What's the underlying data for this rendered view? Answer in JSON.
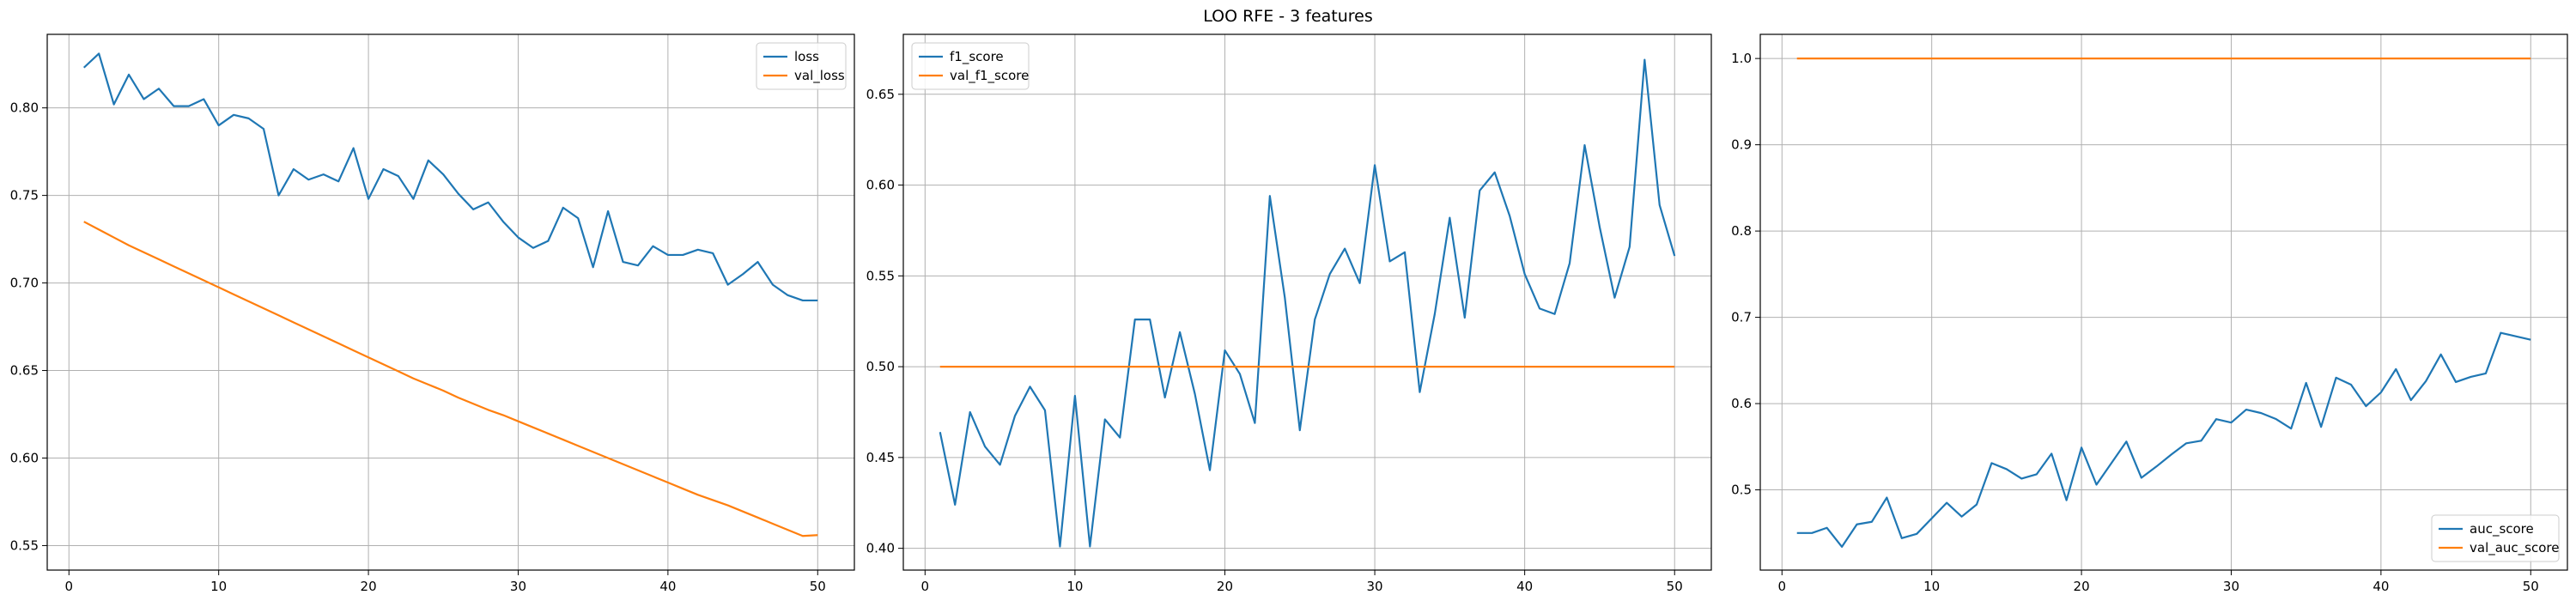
{
  "suptitle": "LOO RFE - 3 features",
  "colors": {
    "series1": "#1f77b4",
    "series2": "#ff7f0e",
    "grid": "#b0b0b0"
  },
  "chart_data": [
    {
      "type": "line",
      "title": "",
      "xlabel": "",
      "ylabel": "",
      "grid": true,
      "legend": "upper right",
      "xlim": [
        -1.45,
        52.45
      ],
      "ylim": [
        0.536,
        0.842
      ],
      "xticks": [
        0,
        10,
        20,
        30,
        40,
        50
      ],
      "yticks": [
        0.55,
        0.6,
        0.65,
        0.7,
        0.75,
        0.8
      ],
      "ytick_labels": [
        "0.55",
        "0.60",
        "0.65",
        "0.70",
        "0.75",
        "0.80"
      ],
      "x": [
        1,
        2,
        3,
        4,
        5,
        6,
        7,
        8,
        9,
        10,
        11,
        12,
        13,
        14,
        15,
        16,
        17,
        18,
        19,
        20,
        21,
        22,
        23,
        24,
        25,
        26,
        27,
        28,
        29,
        30,
        31,
        32,
        33,
        34,
        35,
        36,
        37,
        38,
        39,
        40,
        41,
        42,
        43,
        44,
        45,
        46,
        47,
        48,
        49,
        50
      ],
      "series": [
        {
          "name": "loss",
          "values": [
            0.823,
            0.831,
            0.802,
            0.819,
            0.805,
            0.811,
            0.801,
            0.801,
            0.805,
            0.79,
            0.796,
            0.794,
            0.788,
            0.75,
            0.765,
            0.759,
            0.762,
            0.758,
            0.777,
            0.748,
            0.765,
            0.761,
            0.748,
            0.77,
            0.762,
            0.751,
            0.742,
            0.746,
            0.735,
            0.726,
            0.72,
            0.724,
            0.743,
            0.737,
            0.709,
            0.741,
            0.712,
            0.71,
            0.721,
            0.716,
            0.716,
            0.719,
            0.717,
            0.699,
            0.705,
            0.712,
            0.699,
            0.693,
            0.69,
            0.69
          ]
        },
        {
          "name": "val_loss",
          "values": [
            0.735,
            0.7305,
            0.726,
            0.7215,
            0.7175,
            0.7135,
            0.7095,
            0.7055,
            0.7015,
            0.6975,
            0.6935,
            0.6895,
            0.6855,
            0.6815,
            0.6775,
            0.6735,
            0.6695,
            0.6655,
            0.6615,
            0.6575,
            0.6535,
            0.6495,
            0.6455,
            0.642,
            0.6385,
            0.6345,
            0.631,
            0.6275,
            0.6245,
            0.621,
            0.6175,
            0.614,
            0.6105,
            0.607,
            0.6035,
            0.6,
            0.5965,
            0.593,
            0.5895,
            0.586,
            0.5825,
            0.579,
            0.576,
            0.573,
            0.5695,
            0.566,
            0.5625,
            0.559,
            0.5555,
            0.556
          ]
        }
      ]
    },
    {
      "type": "line",
      "title": "",
      "xlabel": "",
      "ylabel": "",
      "grid": true,
      "legend": "upper left",
      "xlim": [
        -1.45,
        52.45
      ],
      "ylim": [
        0.388,
        0.683
      ],
      "xticks": [
        0,
        10,
        20,
        30,
        40,
        50
      ],
      "yticks": [
        0.4,
        0.45,
        0.5,
        0.55,
        0.6,
        0.65
      ],
      "ytick_labels": [
        "0.40",
        "0.45",
        "0.50",
        "0.55",
        "0.60",
        "0.65"
      ],
      "x": [
        1,
        2,
        3,
        4,
        5,
        6,
        7,
        8,
        9,
        10,
        11,
        12,
        13,
        14,
        15,
        16,
        17,
        18,
        19,
        20,
        21,
        22,
        23,
        24,
        25,
        26,
        27,
        28,
        29,
        30,
        31,
        32,
        33,
        34,
        35,
        36,
        37,
        38,
        39,
        40,
        41,
        42,
        43,
        44,
        45,
        46,
        47,
        48,
        49,
        50
      ],
      "series": [
        {
          "name": "f1_score",
          "values": [
            0.464,
            0.424,
            0.475,
            0.456,
            0.446,
            0.473,
            0.489,
            0.476,
            0.401,
            0.484,
            0.401,
            0.471,
            0.461,
            0.526,
            0.526,
            0.483,
            0.519,
            0.485,
            0.443,
            0.509,
            0.496,
            0.469,
            0.594,
            0.538,
            0.465,
            0.526,
            0.551,
            0.565,
            0.546,
            0.611,
            0.558,
            0.563,
            0.486,
            0.529,
            0.582,
            0.527,
            0.597,
            0.607,
            0.583,
            0.551,
            0.532,
            0.529,
            0.557,
            0.622,
            0.577,
            0.538,
            0.566,
            0.669,
            0.589,
            0.561
          ]
        },
        {
          "name": "val_f1_score",
          "values": [
            0.5,
            0.5,
            0.5,
            0.5,
            0.5,
            0.5,
            0.5,
            0.5,
            0.5,
            0.5,
            0.5,
            0.5,
            0.5,
            0.5,
            0.5,
            0.5,
            0.5,
            0.5,
            0.5,
            0.5,
            0.5,
            0.5,
            0.5,
            0.5,
            0.5,
            0.5,
            0.5,
            0.5,
            0.5,
            0.5,
            0.5,
            0.5,
            0.5,
            0.5,
            0.5,
            0.5,
            0.5,
            0.5,
            0.5,
            0.5,
            0.5,
            0.5,
            0.5,
            0.5,
            0.5,
            0.5,
            0.5,
            0.5,
            0.5,
            0.5
          ]
        }
      ]
    },
    {
      "type": "line",
      "title": "",
      "xlabel": "",
      "ylabel": "",
      "grid": true,
      "legend": "lower right",
      "xlim": [
        -1.45,
        52.45
      ],
      "ylim": [
        0.407,
        1.028
      ],
      "xticks": [
        0,
        10,
        20,
        30,
        40,
        50
      ],
      "yticks": [
        0.5,
        0.6,
        0.7,
        0.8,
        0.9,
        1.0
      ],
      "ytick_labels": [
        "0.5",
        "0.6",
        "0.7",
        "0.8",
        "0.9",
        "1.0"
      ],
      "x": [
        1,
        2,
        3,
        4,
        5,
        6,
        7,
        8,
        9,
        10,
        11,
        12,
        13,
        14,
        15,
        16,
        17,
        18,
        19,
        20,
        21,
        22,
        23,
        24,
        25,
        26,
        27,
        28,
        29,
        30,
        31,
        32,
        33,
        34,
        35,
        36,
        37,
        38,
        39,
        40,
        41,
        42,
        43,
        44,
        45,
        46,
        47,
        48,
        49,
        50
      ],
      "series": [
        {
          "name": "auc_score",
          "values": [
            0.45,
            0.45,
            0.456,
            0.434,
            0.46,
            0.463,
            0.491,
            0.444,
            0.449,
            0.467,
            0.485,
            0.469,
            0.483,
            0.531,
            0.524,
            0.513,
            0.518,
            0.542,
            0.488,
            0.549,
            0.506,
            0.531,
            0.556,
            0.514,
            0.527,
            0.541,
            0.554,
            0.557,
            0.582,
            0.578,
            0.593,
            0.589,
            0.582,
            0.571,
            0.624,
            0.573,
            0.63,
            0.622,
            0.597,
            0.613,
            0.64,
            0.604,
            0.626,
            0.657,
            0.625,
            0.631,
            0.635,
            0.682,
            0.678,
            0.674
          ]
        },
        {
          "name": "val_auc_score",
          "values": [
            1,
            1,
            1,
            1,
            1,
            1,
            1,
            1,
            1,
            1,
            1,
            1,
            1,
            1,
            1,
            1,
            1,
            1,
            1,
            1,
            1,
            1,
            1,
            1,
            1,
            1,
            1,
            1,
            1,
            1,
            1,
            1,
            1,
            1,
            1,
            1,
            1,
            1,
            1,
            1,
            1,
            1,
            1,
            1,
            1,
            1,
            1,
            1,
            1,
            1
          ]
        }
      ]
    }
  ]
}
